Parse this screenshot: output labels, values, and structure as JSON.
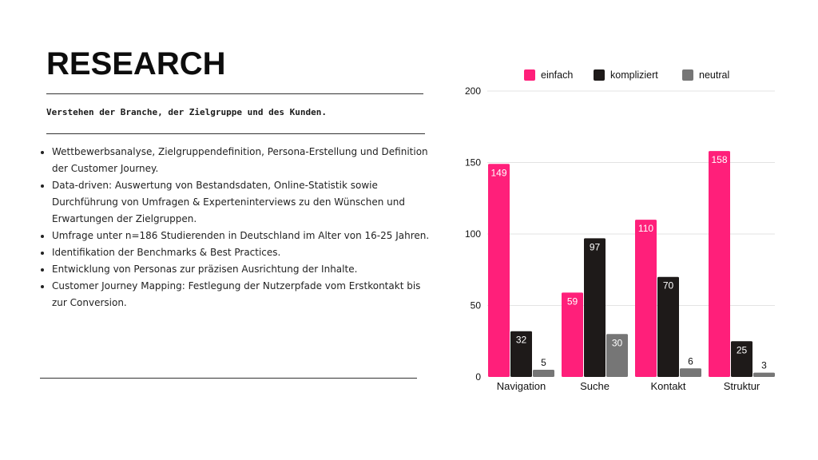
{
  "page": {
    "title": "RESEARCH",
    "subtitle": "Verstehen der Branche, der Zielgruppe und des Kunden.",
    "bullets": [
      "Wettbewerbsanalyse, Zielgruppendefinition, Persona-Erstellung und Definition der Customer Journey.",
      "Data-driven: Auswertung von Bestandsdaten, Online-Statistik sowie Durchführung von Umfragen & Experteninterviews zu den Wünschen und Erwartungen der Zielgruppen.",
      "Umfrage unter n=186 Studierenden in Deutschland im Alter von 16-25 Jahren.",
      "Identifikation der Benchmarks & Best Practices.",
      "Entwicklung von Personas zur präzisen Ausrichtung der Inhalte.",
      "Customer Journey Mapping: Festlegung der Nutzerpfade vom Erstkontakt bis zur Conversion."
    ]
  },
  "chart_data": {
    "type": "bar",
    "categories": [
      "Navigation",
      "Suche",
      "Kontakt",
      "Struktur"
    ],
    "series": [
      {
        "name": "einfach",
        "color": "#ff1f7a",
        "values": [
          149,
          59,
          110,
          158
        ]
      },
      {
        "name": "kompliziert",
        "color": "#1e1a19",
        "values": [
          32,
          97,
          70,
          25
        ]
      },
      {
        "name": "neutral",
        "color": "#767676",
        "values": [
          5,
          30,
          6,
          3
        ]
      }
    ],
    "ylim": [
      0,
      200
    ],
    "yticks": [
      0,
      50,
      100,
      150,
      200
    ],
    "grid": true,
    "legend": "top",
    "data_labels": true
  }
}
